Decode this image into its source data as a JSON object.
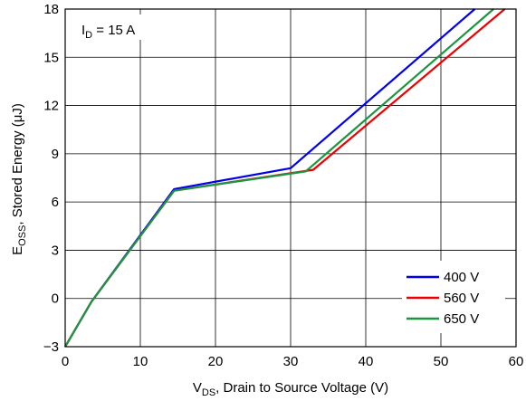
{
  "chart_data": {
    "type": "line",
    "xlabel": {
      "main": "V",
      "sub": "DS",
      "rest": ", Drain to Source Voltage (V)"
    },
    "ylabel": {
      "main": "E",
      "sub": "OSS",
      "rest": ", Stored Energy  (μJ)"
    },
    "annotation": {
      "main": "I",
      "sub": "D",
      "rest": " = 15 A"
    },
    "xlim": [
      0,
      60
    ],
    "ylim": [
      -3,
      18
    ],
    "xticks": [
      0,
      10,
      20,
      30,
      40,
      50,
      60
    ],
    "yticks": [
      -3,
      0,
      3,
      6,
      9,
      12,
      15,
      18
    ],
    "ytick_labels": [
      "−3",
      "0",
      "3",
      "6",
      "9",
      "12",
      "15",
      "18"
    ],
    "grid": true,
    "legend_position": "bottom-right",
    "series": [
      {
        "name": "400 V",
        "color": "#0000ee",
        "x": [
          0,
          3.5,
          14.5,
          30,
          54.5
        ],
        "y": [
          -3,
          -0.2,
          6.8,
          8.1,
          18
        ]
      },
      {
        "name": "560 V",
        "color": "#ee0000",
        "x": [
          0,
          3.5,
          14.5,
          33,
          58.5
        ],
        "y": [
          -3,
          -0.2,
          6.7,
          8.0,
          18
        ]
      },
      {
        "name": "650 V",
        "color": "#1a9641",
        "x": [
          0,
          3.5,
          14.5,
          32,
          57
        ],
        "y": [
          -3,
          -0.2,
          6.7,
          7.9,
          18
        ]
      }
    ]
  }
}
